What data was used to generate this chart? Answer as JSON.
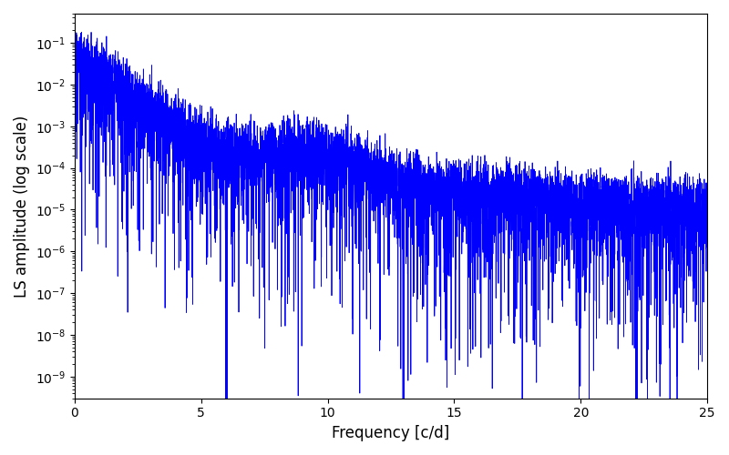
{
  "title": "",
  "xlabel": "Frequency [c/d]",
  "ylabel": "LS amplitude (log scale)",
  "xlim": [
    0,
    25
  ],
  "ylim": [
    3e-10,
    0.5
  ],
  "line_color": "#0000ff",
  "line_width": 0.6,
  "yscale": "log",
  "n_points": 6000,
  "freq_max": 25.0,
  "seed": 7,
  "background_color": "#ffffff",
  "figsize": [
    8.0,
    5.0
  ],
  "dpi": 100
}
